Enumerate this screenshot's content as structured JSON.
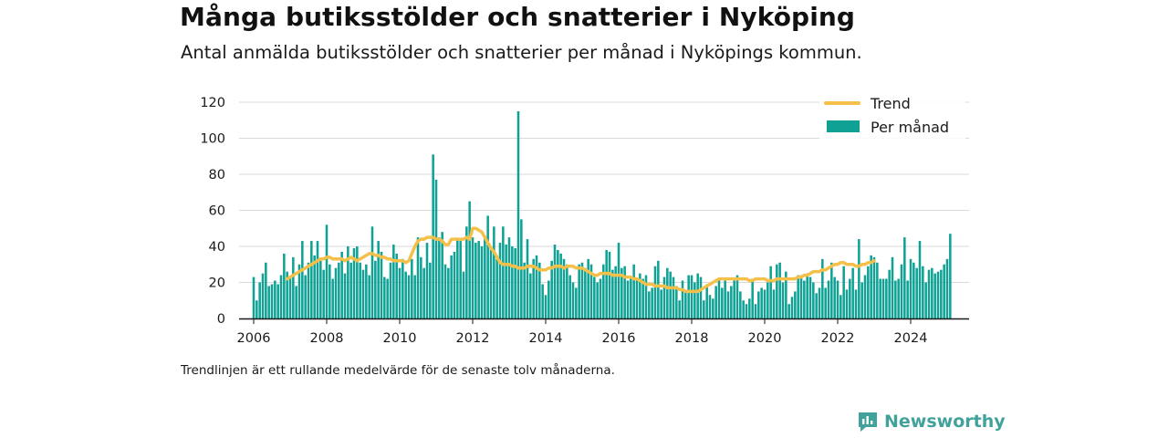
{
  "header": {
    "title": "Många butiksstölder och snatterier i Nyköping",
    "subtitle": "Antal anmälda butiksstölder och snatterier per månad i Nyköpings kommun."
  },
  "footer": {
    "note": "Trendlinjen är ett rullande medelvärde för de senaste tolv månaderna.",
    "brand": "Newsworthy"
  },
  "colors": {
    "bars": "#10a195",
    "trend": "#f5c04a",
    "grid": "#d9d9d9",
    "brand": "#41a19b"
  },
  "chart_data": {
    "type": "bar",
    "x_start": "2006-01",
    "x_unit": "month",
    "xlim": [
      2005.6,
      2025.6
    ],
    "ylim": [
      0,
      120
    ],
    "yticks": [
      "0",
      "20",
      "40",
      "60",
      "80",
      "100",
      "120"
    ],
    "xticks": [
      "2006",
      "2008",
      "2010",
      "2012",
      "2014",
      "2016",
      "2018",
      "2020",
      "2022",
      "2024"
    ],
    "legend": {
      "position": "top-right",
      "trend_label": "Trend",
      "bars_label": "Per månad"
    },
    "series": [
      {
        "name": "Per månad",
        "values": [
          23,
          10,
          20,
          25,
          31,
          18,
          19,
          21,
          19,
          24,
          36,
          26,
          23,
          34,
          18,
          30,
          43,
          24,
          31,
          43,
          35,
          43,
          32,
          27,
          52,
          30,
          22,
          28,
          31,
          37,
          25,
          40,
          31,
          39,
          40,
          31,
          27,
          30,
          24,
          51,
          32,
          43,
          37,
          23,
          22,
          31,
          41,
          36,
          28,
          33,
          26,
          24,
          33,
          24,
          45,
          34,
          28,
          42,
          31,
          91,
          77,
          45,
          48,
          30,
          28,
          35,
          37,
          44,
          43,
          26,
          51,
          65,
          45,
          42,
          43,
          40,
          46,
          57,
          40,
          51,
          33,
          42,
          51,
          41,
          45,
          40,
          39,
          115,
          55,
          31,
          44,
          25,
          33,
          35,
          31,
          19,
          13,
          21,
          32,
          41,
          38,
          36,
          33,
          30,
          24,
          20,
          17,
          30,
          31,
          28,
          33,
          30,
          23,
          20,
          22,
          30,
          38,
          37,
          27,
          29,
          42,
          28,
          29,
          21,
          22,
          30,
          21,
          25,
          22,
          24,
          15,
          17,
          29,
          32,
          16,
          23,
          28,
          26,
          23,
          18,
          10,
          21,
          15,
          24,
          24,
          20,
          25,
          23,
          10,
          19,
          13,
          11,
          18,
          22,
          17,
          21,
          15,
          18,
          21,
          24,
          15,
          10,
          8,
          11,
          22,
          8,
          15,
          17,
          16,
          20,
          29,
          16,
          30,
          31,
          20,
          26,
          8,
          12,
          15,
          24,
          24,
          21,
          25,
          23,
          20,
          14,
          17,
          33,
          17,
          21,
          31,
          23,
          21,
          13,
          29,
          16,
          22,
          28,
          16,
          44,
          20,
          24,
          29,
          35,
          34,
          31,
          22,
          22,
          22,
          27,
          34,
          21,
          22,
          30,
          45,
          21,
          33,
          31,
          28,
          43,
          29,
          20,
          27,
          28,
          25,
          26,
          27,
          30,
          33,
          47
        ]
      },
      {
        "name": "Trend",
        "start": "2006-12",
        "values": [
          22,
          23,
          24,
          25,
          26,
          27,
          28,
          29,
          30,
          31,
          32,
          33,
          33,
          34,
          34,
          33,
          33,
          33,
          33,
          32,
          33,
          34,
          33,
          32,
          33,
          34,
          35,
          36,
          36,
          35,
          35,
          34,
          34,
          33,
          33,
          32,
          32,
          32,
          32,
          31,
          32,
          36,
          40,
          43,
          44,
          44,
          45,
          45,
          45,
          44,
          44,
          43,
          41,
          41,
          44,
          44,
          44,
          44,
          44,
          45,
          44,
          50,
          50,
          49,
          48,
          45,
          42,
          39,
          37,
          34,
          31,
          30,
          30,
          30,
          29,
          29,
          28,
          28,
          28,
          29,
          29,
          29,
          28,
          27,
          27,
          27,
          28,
          28,
          29,
          29,
          29,
          28,
          29,
          29,
          29,
          28,
          28,
          28,
          27,
          26,
          25,
          24,
          24,
          25,
          25,
          25,
          25,
          24,
          24,
          24,
          24,
          23,
          23,
          23,
          22,
          22,
          21,
          20,
          19,
          19,
          19,
          18,
          18,
          18,
          18,
          17,
          17,
          17,
          17,
          16,
          16,
          15,
          15,
          15,
          15,
          15,
          16,
          17,
          18,
          19,
          20,
          21,
          22,
          22,
          22,
          22,
          22,
          22,
          22,
          22,
          22,
          22,
          21,
          21,
          22,
          22,
          22,
          22,
          21,
          21,
          21,
          22,
          22,
          22,
          22,
          22,
          22,
          22,
          23,
          23,
          24,
          24,
          25,
          26,
          26,
          26,
          27,
          27,
          28,
          29,
          30,
          30,
          31,
          31,
          30,
          30,
          30,
          29,
          29,
          30,
          30,
          31,
          31,
          32
        ]
      }
    ]
  }
}
